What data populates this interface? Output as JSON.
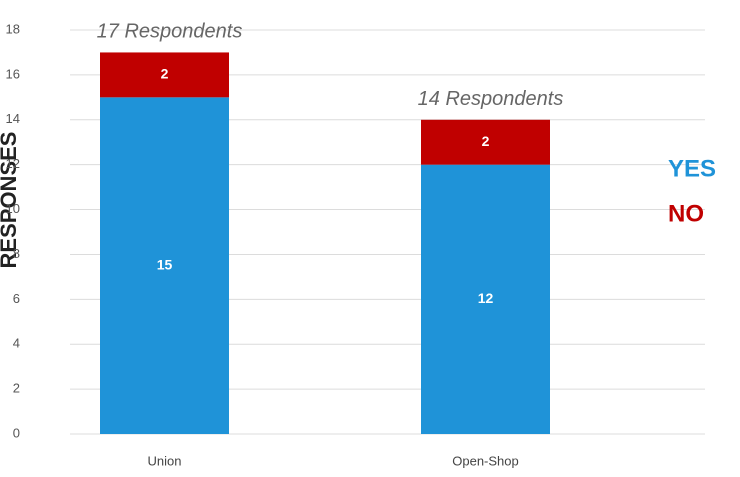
{
  "chart_data": {
    "type": "stacked_bar",
    "y_label": "RESPONSES",
    "categories": [
      "Union",
      "Open-Shop"
    ],
    "series": [
      {
        "name": "YES",
        "color": "#1f93d8",
        "values": [
          15,
          12
        ]
      },
      {
        "name": "NO",
        "color": "#c00000",
        "values": [
          2,
          2
        ]
      }
    ],
    "annotations": [
      "17 Respondents",
      "14 Respondents"
    ],
    "ylim": [
      0,
      18
    ],
    "yticks": [
      0,
      2,
      4,
      6,
      8,
      10,
      12,
      14,
      16,
      18
    ],
    "grid": true
  }
}
